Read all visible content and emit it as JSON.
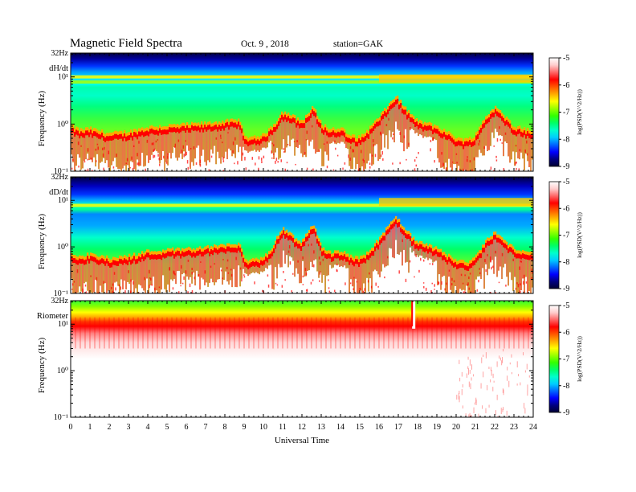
{
  "header": {
    "title": "Magnetic  Field  Spectra",
    "date": "Oct. 9  , 2018",
    "station": "station=GAK"
  },
  "colors": {
    "colormap": [
      "#000033",
      "#000080",
      "#0000ff",
      "#0066ff",
      "#00ccff",
      "#00ffcc",
      "#00ff66",
      "#33ff00",
      "#99ff00",
      "#ffff00",
      "#ffaa00",
      "#ff5500",
      "#ff0000",
      "#ff6666",
      "#ffcccc",
      "#ffffff"
    ]
  },
  "chart_data": {
    "type": "heatmap",
    "xlabel": "Universal Time",
    "x_ticks": [
      "0",
      "1",
      "2",
      "3",
      "4",
      "5",
      "6",
      "7",
      "8",
      "9",
      "10",
      "11",
      "12",
      "13",
      "14",
      "15",
      "16",
      "17",
      "18",
      "19",
      "20",
      "21",
      "22",
      "23",
      "24"
    ],
    "xlim": [
      0,
      24
    ],
    "ylabel": "Frequency  (Hz)",
    "y_scale": "log",
    "ylim": [
      0.1,
      32
    ],
    "y_ticks": [
      "32Hz",
      "10¹",
      "10⁰",
      "10⁻¹"
    ],
    "colorbar": {
      "label": "log(PSD(V^2/Hz))",
      "ticks": [
        "-5",
        "-6",
        "-7",
        "-8",
        "-9"
      ],
      "range": [
        -9,
        -5
      ]
    },
    "panels": [
      {
        "name": "dH/dt",
        "cutoff_freq_hz": [
          [
            0,
            0.8
          ],
          [
            0.5,
            0.65
          ],
          [
            1,
            0.7
          ],
          [
            2,
            0.55
          ],
          [
            3,
            0.6
          ],
          [
            4,
            0.75
          ],
          [
            5,
            0.8
          ],
          [
            6,
            0.85
          ],
          [
            7,
            0.9
          ],
          [
            8,
            1.0
          ],
          [
            8.8,
            1.05
          ],
          [
            9,
            0.45
          ],
          [
            10,
            0.5
          ],
          [
            10.5,
            0.8
          ],
          [
            11,
            1.6
          ],
          [
            11.5,
            1.3
          ],
          [
            12,
            1.0
          ],
          [
            12.6,
            2.0
          ],
          [
            13,
            0.9
          ],
          [
            13.5,
            0.65
          ],
          [
            14,
            0.75
          ],
          [
            14.5,
            0.5
          ],
          [
            15,
            0.45
          ],
          [
            15.5,
            0.7
          ],
          [
            16,
            1.2
          ],
          [
            16.5,
            2.2
          ],
          [
            16.9,
            3.5
          ],
          [
            17.3,
            2.0
          ],
          [
            18,
            1.0
          ],
          [
            18.5,
            0.9
          ],
          [
            19,
            0.8
          ],
          [
            19.5,
            0.6
          ],
          [
            20,
            0.45
          ],
          [
            20.5,
            0.4
          ],
          [
            21,
            0.5
          ],
          [
            21.5,
            1.2
          ],
          [
            22,
            2.0
          ],
          [
            22.5,
            1.3
          ],
          [
            23,
            0.8
          ],
          [
            23.5,
            0.7
          ],
          [
            24,
            0.6
          ]
        ],
        "notable_lines_hz": [
          10,
          7.8
        ],
        "upper_band_bright_after_ut": 16
      },
      {
        "name": "dD/dt",
        "cutoff_freq_hz": [
          [
            0,
            0.65
          ],
          [
            0.5,
            0.55
          ],
          [
            1,
            0.6
          ],
          [
            2,
            0.5
          ],
          [
            3,
            0.55
          ],
          [
            4,
            0.7
          ],
          [
            5,
            0.75
          ],
          [
            6,
            0.8
          ],
          [
            7,
            0.85
          ],
          [
            8,
            0.95
          ],
          [
            8.8,
            1.0
          ],
          [
            9,
            0.45
          ],
          [
            10,
            0.5
          ],
          [
            10.5,
            0.9
          ],
          [
            11,
            2.3
          ],
          [
            11.5,
            1.5
          ],
          [
            12,
            1.1
          ],
          [
            12.6,
            2.8
          ],
          [
            13,
            0.9
          ],
          [
            13.5,
            0.65
          ],
          [
            14,
            0.7
          ],
          [
            14.5,
            0.55
          ],
          [
            15,
            0.5
          ],
          [
            15.5,
            0.7
          ],
          [
            16,
            1.3
          ],
          [
            16.5,
            2.4
          ],
          [
            16.9,
            3.8
          ],
          [
            17.3,
            2.2
          ],
          [
            18,
            1.1
          ],
          [
            18.5,
            1.0
          ],
          [
            19,
            0.8
          ],
          [
            19.5,
            0.6
          ],
          [
            20,
            0.45
          ],
          [
            20.5,
            0.4
          ],
          [
            21,
            0.5
          ],
          [
            21.5,
            1.1
          ],
          [
            22,
            1.8
          ],
          [
            22.5,
            1.2
          ],
          [
            23,
            0.8
          ],
          [
            23.5,
            0.75
          ],
          [
            24,
            0.6
          ]
        ],
        "notable_lines_hz": [
          7.8
        ],
        "upper_band_bright_after_ut": 16
      },
      {
        "name": "Riometer",
        "cutoff_freq_hz": [
          [
            0,
            11
          ],
          [
            24,
            11
          ]
        ],
        "notable_lines_hz": [],
        "spike_ut": 17.8
      }
    ]
  }
}
